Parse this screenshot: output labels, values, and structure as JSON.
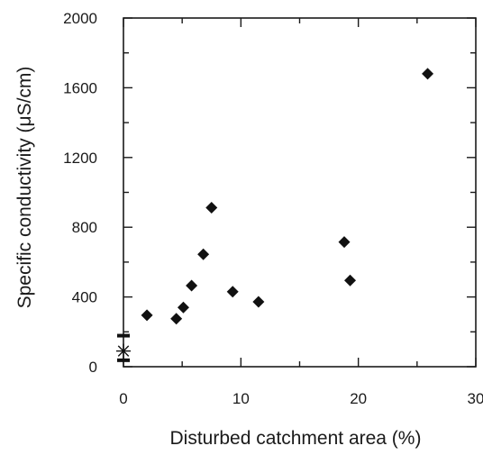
{
  "chart_data": {
    "type": "scatter",
    "title": "",
    "xlabel": "Disturbed catchment area (%)",
    "ylabel": "Specific conductivity (μS/cm)",
    "xlim": [
      0,
      30
    ],
    "ylim": [
      0,
      2000
    ],
    "x_ticks": [
      "0",
      "10",
      "20",
      "30"
    ],
    "y_ticks": [
      "0",
      "400",
      "800",
      "1200",
      "1600",
      "2000"
    ],
    "grid": false,
    "legend": "none",
    "marker_color": "#111111",
    "series": [
      {
        "marker": "diamond",
        "points": [
          {
            "x": 2.0,
            "y": 295
          },
          {
            "x": 4.5,
            "y": 275
          },
          {
            "x": 5.1,
            "y": 340
          },
          {
            "x": 5.8,
            "y": 465
          },
          {
            "x": 6.8,
            "y": 645
          },
          {
            "x": 7.5,
            "y": 912
          },
          {
            "x": 9.3,
            "y": 430
          },
          {
            "x": 11.5,
            "y": 372
          },
          {
            "x": 18.8,
            "y": 715
          },
          {
            "x": 19.3,
            "y": 495
          },
          {
            "x": 25.9,
            "y": 1680
          }
        ]
      },
      {
        "marker": "asterisk",
        "points": [
          {
            "x": 0,
            "y": 90
          }
        ]
      },
      {
        "marker": "dash",
        "points": [
          {
            "x": 0,
            "y": 178
          },
          {
            "x": 0,
            "y": 37
          }
        ]
      }
    ]
  }
}
